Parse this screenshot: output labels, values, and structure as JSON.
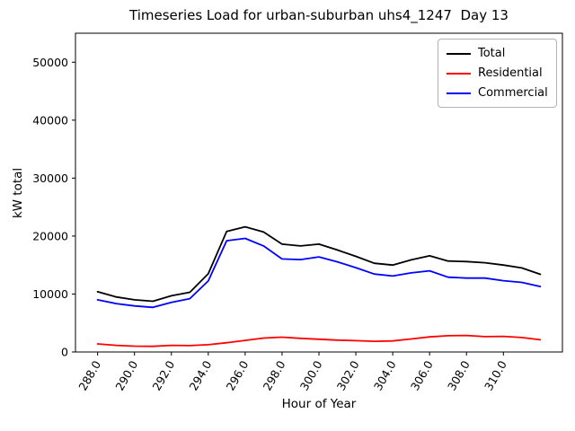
{
  "title": "Timeseries Load for urban-suburban uhs4_1247  Day 13",
  "chart_data": {
    "type": "line",
    "title": "Timeseries Load for urban-suburban uhs4_1247  Day 13",
    "xlabel": "Hour of Year",
    "ylabel": "kW total",
    "xlim": [
      286.8,
      313.2
    ],
    "ylim": [
      0,
      55000
    ],
    "grid": false,
    "legend_position": "upper right",
    "xticks": [
      288,
      290,
      292,
      294,
      296,
      298,
      300,
      302,
      304,
      306,
      308,
      310
    ],
    "xtick_labels": [
      "288.0",
      "290.0",
      "292.0",
      "294.0",
      "296.0",
      "298.0",
      "300.0",
      "302.0",
      "304.0",
      "306.0",
      "308.0",
      "310.0"
    ],
    "yticks": [
      0,
      10000,
      20000,
      30000,
      40000,
      50000
    ],
    "ytick_labels": [
      "0",
      "10000",
      "20000",
      "30000",
      "40000",
      "50000"
    ],
    "x": [
      288,
      289,
      290,
      291,
      292,
      293,
      294,
      295,
      296,
      297,
      298,
      299,
      300,
      301,
      302,
      303,
      304,
      305,
      306,
      307,
      308,
      309,
      310,
      311,
      312
    ],
    "series": [
      {
        "name": "Total",
        "color": "#000000",
        "values": [
          10400,
          9500,
          9000,
          8750,
          9700,
          10300,
          13500,
          20800,
          21600,
          20700,
          18600,
          18300,
          18600,
          17600,
          16500,
          15300,
          15000,
          15900,
          16600,
          15700,
          15600,
          15400,
          15000,
          14500,
          13400
        ]
      },
      {
        "name": "Residential",
        "color": "#ff0000",
        "values": [
          1400,
          1150,
          1000,
          980,
          1150,
          1100,
          1250,
          1600,
          2000,
          2400,
          2550,
          2350,
          2200,
          2050,
          1950,
          1850,
          1900,
          2250,
          2600,
          2800,
          2850,
          2650,
          2700,
          2500,
          2100
        ]
      },
      {
        "name": "Commercial",
        "color": "#0000ff",
        "values": [
          9000,
          8350,
          7950,
          7700,
          8550,
          9200,
          12250,
          19200,
          19600,
          18300,
          16050,
          15950,
          16400,
          15550,
          14550,
          13450,
          13100,
          13650,
          14000,
          12900,
          12750,
          12750,
          12300,
          12000,
          11300
        ]
      }
    ]
  }
}
